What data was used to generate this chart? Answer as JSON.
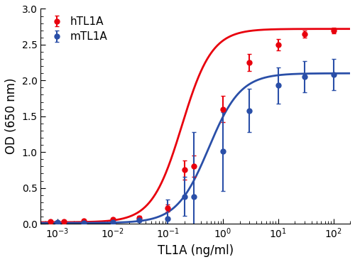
{
  "hTL1A_x": [
    0.00075,
    0.0013,
    0.003,
    0.01,
    0.03,
    0.1,
    0.2,
    0.3,
    1.0,
    3.0,
    10.0,
    30.0,
    100.0
  ],
  "hTL1A_y": [
    0.03,
    0.03,
    0.04,
    0.06,
    0.08,
    0.22,
    0.75,
    0.8,
    1.6,
    2.25,
    2.5,
    2.65,
    2.7
  ],
  "hTL1A_yerr": [
    0.015,
    0.015,
    0.015,
    0.02,
    0.025,
    0.05,
    0.13,
    0.15,
    0.18,
    0.12,
    0.08,
    0.05,
    0.04
  ],
  "mTL1A_x": [
    0.001,
    0.003,
    0.01,
    0.03,
    0.1,
    0.2,
    0.3,
    1.0,
    3.0,
    10.0,
    30.0,
    100.0
  ],
  "mTL1A_y": [
    0.02,
    0.01,
    0.02,
    0.05,
    0.07,
    0.38,
    0.38,
    1.01,
    1.58,
    1.93,
    2.05,
    2.08
  ],
  "mTL1A_yerr": [
    0.01,
    0.01,
    0.015,
    0.02,
    0.27,
    0.27,
    0.9,
    0.55,
    0.3,
    0.25,
    0.22,
    0.22
  ],
  "hTL1A_color": "#e8000d",
  "mTL1A_color": "#2a4fa8",
  "xlabel": "TL1A (ng/ml)",
  "ylabel": "OD (650 nm)",
  "xlim": [
    0.0005,
    200
  ],
  "ylim": [
    0.0,
    3.0
  ],
  "yticks": [
    0.0,
    0.5,
    1.0,
    1.5,
    2.0,
    2.5,
    3.0
  ],
  "legend_labels": [
    "hTL1A",
    "mTL1A"
  ],
  "figsize": [
    5.0,
    3.69
  ],
  "dpi": 100
}
